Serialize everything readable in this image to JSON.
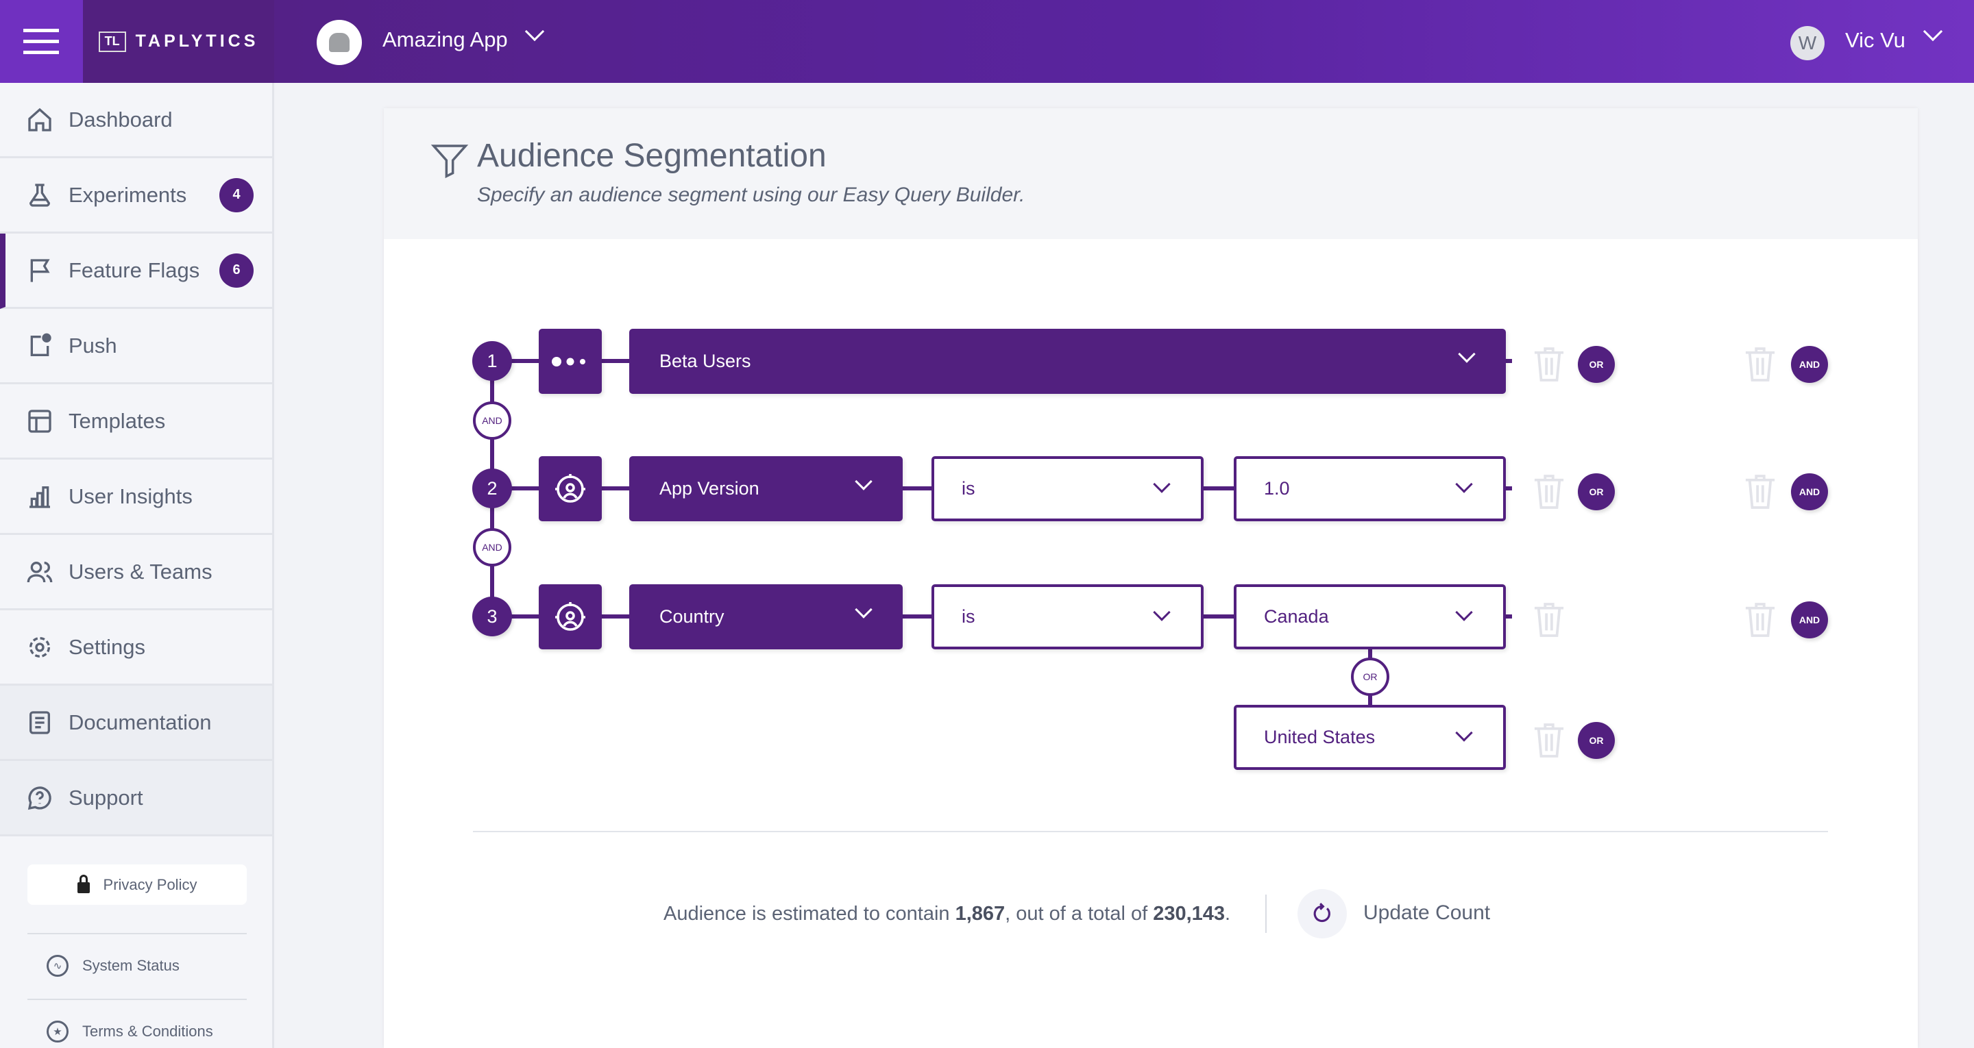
{
  "header": {
    "brand": "TAPLYTICS",
    "brand_mark": "TL",
    "app_name": "Amazing App",
    "user_initial": "W",
    "user_name": "Vic Vu"
  },
  "sidebar": {
    "items": [
      {
        "label": "Dashboard",
        "icon": "home-icon"
      },
      {
        "label": "Experiments",
        "icon": "flask-icon",
        "badge": "4"
      },
      {
        "label": "Feature Flags",
        "icon": "flag-icon",
        "badge": "6",
        "active": true
      },
      {
        "label": "Push",
        "icon": "push-icon"
      },
      {
        "label": "Templates",
        "icon": "template-icon"
      },
      {
        "label": "User Insights",
        "icon": "bar-chart-icon"
      },
      {
        "label": "Users & Teams",
        "icon": "users-icon"
      },
      {
        "label": "Settings",
        "icon": "gear-icon"
      },
      {
        "label": "Documentation",
        "icon": "document-icon"
      },
      {
        "label": "Support",
        "icon": "help-icon"
      }
    ],
    "privacy_policy": "Privacy Policy",
    "system_status": "System Status",
    "terms": "Terms & Conditions"
  },
  "segment": {
    "title": "Audience Segmentation",
    "subtitle": "Specify an audience segment using our Easy Query Builder.",
    "conjunction_and": "AND",
    "conjunction_or": "OR",
    "rules": [
      {
        "number": "1",
        "field": "Beta Users"
      },
      {
        "number": "2",
        "field": "App Version",
        "operator": "is",
        "value": "1.0"
      },
      {
        "number": "3",
        "field": "Country",
        "operator": "is",
        "value": "Canada",
        "or_value": "United States"
      }
    ],
    "or_button": "OR",
    "and_button": "AND"
  },
  "footer": {
    "count_prefix": "Audience is estimated to contain ",
    "estimated": "1,867",
    "count_middle": ", out of a total of ",
    "total": "230,143",
    "count_suffix": ".",
    "update_label": "Update Count"
  },
  "colors": {
    "brand": "#52207f",
    "header_accent": "#7030c0",
    "text": "#5b6375"
  }
}
